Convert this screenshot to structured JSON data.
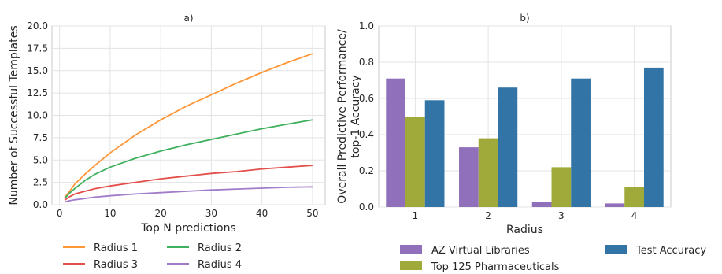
{
  "chart_data": [
    {
      "type": "line",
      "title": "a)",
      "xlabel": "Top N predictions",
      "ylabel": "Number of Successful Templates",
      "xlim": [
        -1.5,
        52.5
      ],
      "ylim": [
        0,
        20
      ],
      "xticks": [
        0,
        10,
        20,
        30,
        40,
        50
      ],
      "yticks": [
        0,
        2.5,
        5,
        7.5,
        10,
        12.5,
        15,
        17.5,
        20
      ],
      "ytick_labels": [
        "0.0",
        "2.5",
        "5.0",
        "7.5",
        "10.0",
        "12.5",
        "15.0",
        "17.5",
        "20.0"
      ],
      "grid": true,
      "legend_position": "bottom",
      "x": [
        1,
        2,
        3,
        5,
        7,
        10,
        15,
        20,
        25,
        30,
        35,
        40,
        45,
        50
      ],
      "series": [
        {
          "name": "Radius 1",
          "color": "#ff9637",
          "values": [
            0.8,
            1.5,
            2.3,
            3.4,
            4.4,
            5.8,
            7.8,
            9.5,
            11.0,
            12.3,
            13.6,
            14.8,
            15.9,
            16.9
          ]
        },
        {
          "name": "Radius 2",
          "color": "#3fb05e",
          "values": [
            0.7,
            1.3,
            1.8,
            2.7,
            3.4,
            4.2,
            5.2,
            6.0,
            6.7,
            7.3,
            7.9,
            8.5,
            9.0,
            9.5
          ]
        },
        {
          "name": "Radius 3",
          "color": "#e34f4b",
          "values": [
            0.5,
            0.9,
            1.2,
            1.5,
            1.8,
            2.1,
            2.5,
            2.9,
            3.2,
            3.5,
            3.7,
            4.0,
            4.2,
            4.4
          ]
        },
        {
          "name": "Radius 4",
          "color": "#a07cc9",
          "values": [
            0.3,
            0.45,
            0.55,
            0.7,
            0.85,
            1.0,
            1.2,
            1.35,
            1.5,
            1.65,
            1.75,
            1.85,
            1.95,
            2.0
          ]
        }
      ]
    },
    {
      "type": "bar",
      "title": "b)",
      "xlabel": "Radius",
      "ylabel": [
        "Overall Predictive Performance/",
        "top-1 Accuracy"
      ],
      "categories": [
        "1",
        "2",
        "3",
        "4"
      ],
      "ylim": [
        0,
        1.0
      ],
      "yticks": [
        0,
        0.2,
        0.4,
        0.6,
        0.8,
        1.0
      ],
      "ytick_labels": [
        "0.0",
        "0.2",
        "0.4",
        "0.6",
        "0.8",
        "1.0"
      ],
      "grid": true,
      "legend_position": "bottom",
      "series": [
        {
          "name": "AZ Virtual Libraries",
          "color": "#9170bb",
          "values": [
            0.71,
            0.33,
            0.03,
            0.02
          ]
        },
        {
          "name": "Top 125 Pharmaceuticals",
          "color": "#9faa3a",
          "values": [
            0.5,
            0.38,
            0.22,
            0.11
          ]
        },
        {
          "name": "Test Accuracy",
          "color": "#3374a6",
          "values": [
            0.59,
            0.66,
            0.71,
            0.77
          ]
        }
      ]
    }
  ]
}
